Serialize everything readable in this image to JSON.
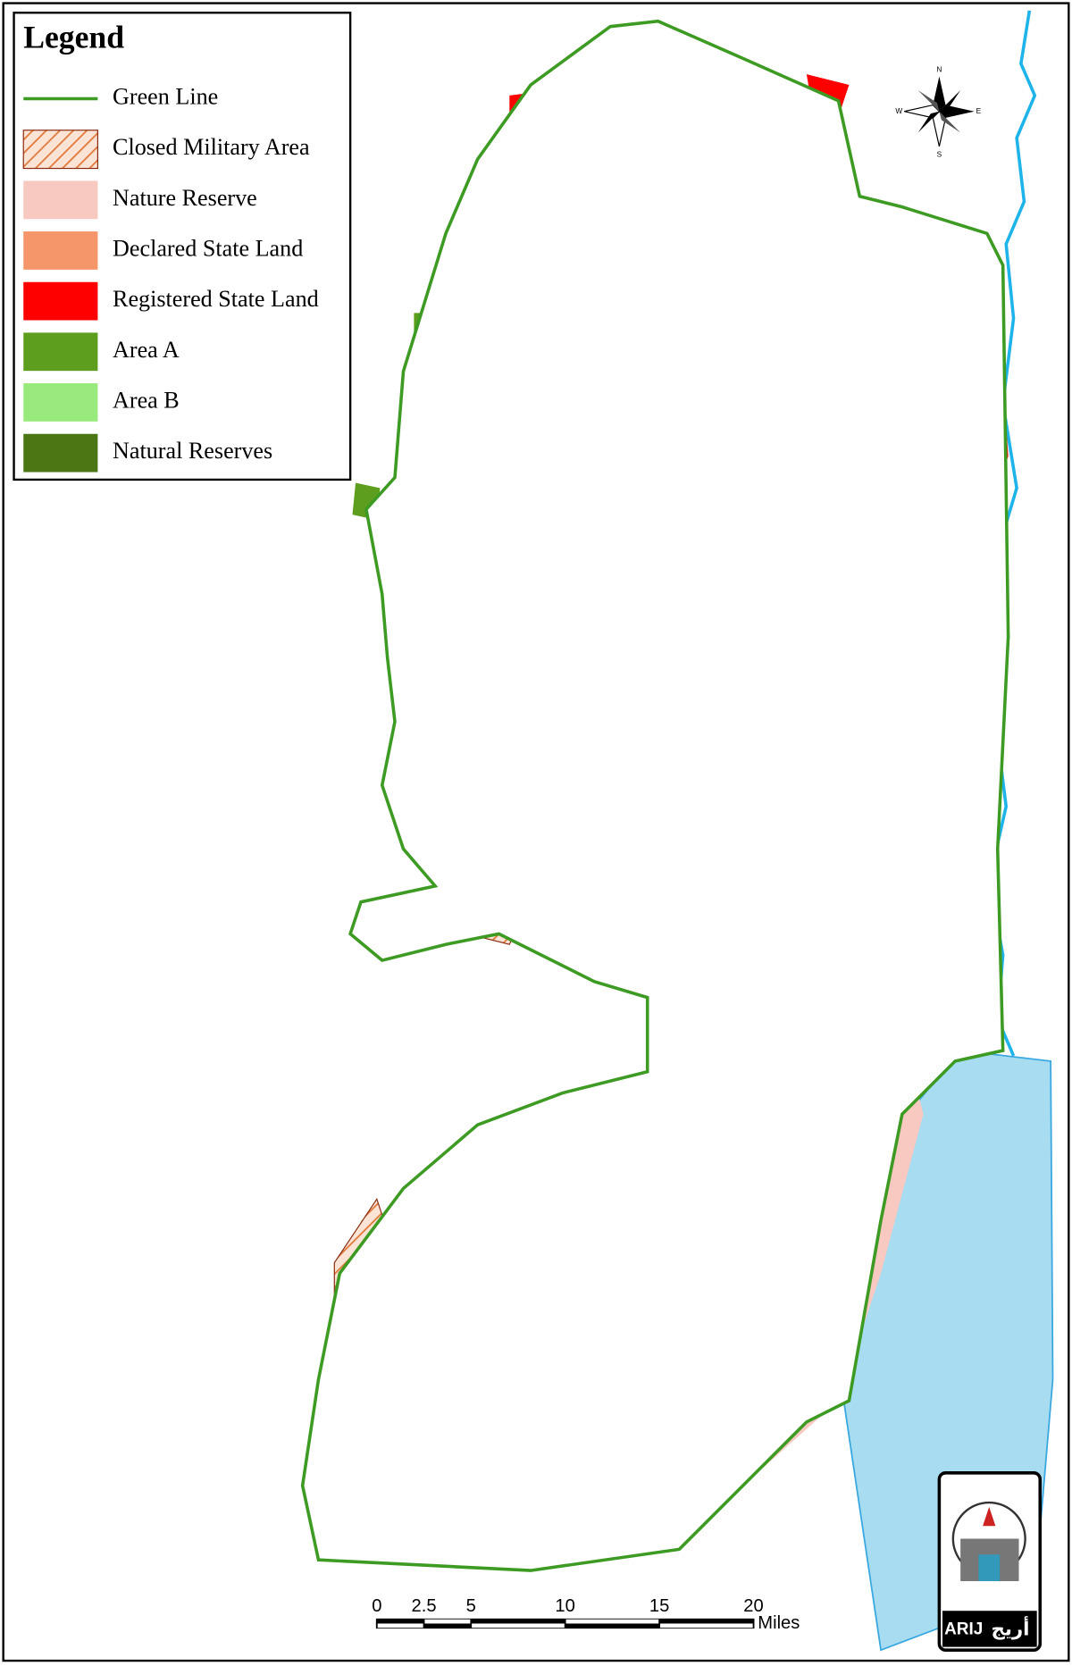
{
  "legend": {
    "title": "Legend",
    "items": [
      {
        "label": "Green Line",
        "kind": "line",
        "color": "#3d9b23"
      },
      {
        "label": "Closed Military Area",
        "kind": "hatch",
        "color": "#e07a3a"
      },
      {
        "label": "Nature Reserve",
        "kind": "fill",
        "color": "#f8c9c1"
      },
      {
        "label": "Declared State Land",
        "kind": "fill",
        "color": "#f4956a"
      },
      {
        "label": "Registered State Land",
        "kind": "fill",
        "color": "#ff0000"
      },
      {
        "label": "Area A",
        "kind": "fill",
        "color": "#5e9e1f"
      },
      {
        "label": "Area B",
        "kind": "fill",
        "color": "#99ea7c"
      },
      {
        "label": "Natural Reserves",
        "kind": "fill",
        "color": "#4a7613"
      }
    ]
  },
  "compass": {
    "n": "N",
    "s": "S",
    "e": "E",
    "w": "W"
  },
  "scale_bar": {
    "ticks": [
      0,
      2.5,
      5,
      10,
      15,
      20
    ],
    "unit": "Miles"
  },
  "logo": {
    "latin": "ARIJ",
    "arabic": "أريج"
  }
}
